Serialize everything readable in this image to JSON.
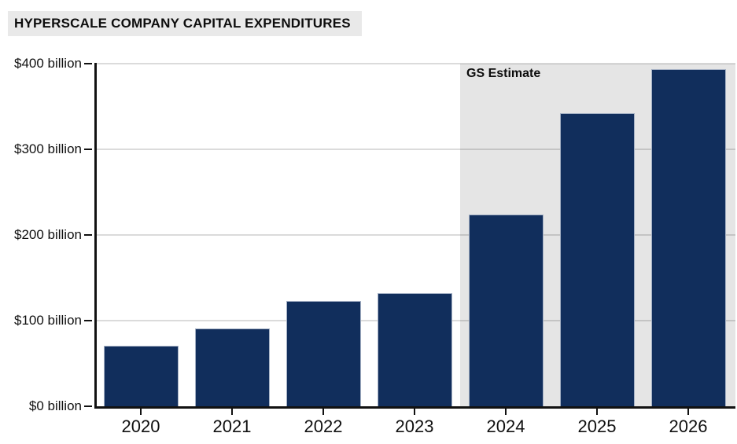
{
  "chart_data": {
    "type": "bar",
    "title": "HYPERSCALE COMPANY CAPITAL EXPENDITURES",
    "categories": [
      "2020",
      "2021",
      "2022",
      "2023",
      "2024",
      "2025",
      "2026"
    ],
    "values": [
      71,
      91,
      123,
      132,
      224,
      342,
      394
    ],
    "xlabel": "",
    "ylabel": "",
    "ylim": [
      0,
      400
    ],
    "grid": true,
    "legend": "none",
    "y_ticks": [
      {
        "value": 0,
        "label": "$0 billion"
      },
      {
        "value": 100,
        "label": "$100 billion"
      },
      {
        "value": 200,
        "label": "$200 billion"
      },
      {
        "value": 300,
        "label": "$300 billion"
      },
      {
        "value": 400,
        "label": "$400 billion"
      }
    ],
    "estimate_region": {
      "label": "GS Estimate",
      "categories": [
        "2024",
        "2025",
        "2026"
      ]
    }
  },
  "colors": {
    "bar": "#112e5c",
    "bar_border": "#a4b0c4",
    "estimate_shade": "#e5e5e5",
    "title_background": "#e9e9e9",
    "gridline": "rgba(0,0,0,0.14)",
    "axis": "#111111",
    "text": "#101010"
  }
}
